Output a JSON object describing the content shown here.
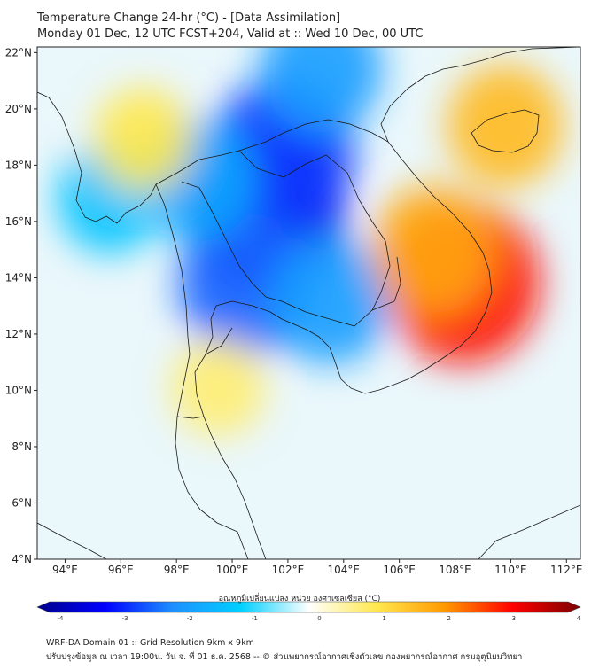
{
  "title": {
    "line1": "Temperature Change 24-hr (°C) - [Data Assimilation]",
    "line2": "Monday 01 Dec, 12 UTC FCST+204, Valid at :: Wed 10 Dec, 00 UTC"
  },
  "map": {
    "lat_range": [
      4,
      22.2
    ],
    "lon_range": [
      93,
      112.5
    ],
    "lat_ticks": [
      {
        "value": 4,
        "label": "4°N"
      },
      {
        "value": 6,
        "label": "6°N"
      },
      {
        "value": 8,
        "label": "8°N"
      },
      {
        "value": 10,
        "label": "10°N"
      },
      {
        "value": 12,
        "label": "12°N"
      },
      {
        "value": 14,
        "label": "14°N"
      },
      {
        "value": 16,
        "label": "16°N"
      },
      {
        "value": 18,
        "label": "18°N"
      },
      {
        "value": 20,
        "label": "20°N"
      },
      {
        "value": 22,
        "label": "22°N"
      }
    ],
    "lon_ticks": [
      {
        "value": 94,
        "label": "94°E"
      },
      {
        "value": 96,
        "label": "96°E"
      },
      {
        "value": 98,
        "label": "98°E"
      },
      {
        "value": 100,
        "label": "100°E"
      },
      {
        "value": 102,
        "label": "102°E"
      },
      {
        "value": 104,
        "label": "104°E"
      },
      {
        "value": 106,
        "label": "106°E"
      },
      {
        "value": 108,
        "label": "108°E"
      },
      {
        "value": 110,
        "label": "110°E"
      },
      {
        "value": 112,
        "label": "112°E"
      }
    ],
    "anomalies": [
      {
        "region": "central-thailand-cooling",
        "lon": 101.2,
        "lat": 16.3,
        "value": -3.2
      },
      {
        "region": "northern-laos-cooling",
        "lon": 101.8,
        "lat": 18.4,
        "value": -2.6
      },
      {
        "region": "lower-thailand-cooling",
        "lon": 100.5,
        "lat": 13.8,
        "value": -2.3
      },
      {
        "region": "cambodia-cooling",
        "lon": 103.5,
        "lat": 13.2,
        "value": -1.8
      },
      {
        "region": "myanmar-cooling",
        "lon": 98.8,
        "lat": 17.5,
        "value": -1.6
      },
      {
        "region": "north-myanmar-cooling",
        "lon": 103.2,
        "lat": 21.4,
        "value": -1.8
      },
      {
        "region": "west-myanmar-cooling",
        "lon": 95.6,
        "lat": 16.8,
        "value": -1.2
      },
      {
        "region": "south-vietnam-warming",
        "lon": 108.3,
        "lat": 13.8,
        "value": 2.9
      },
      {
        "region": "central-vietnam-warming",
        "lon": 107.2,
        "lat": 15.0,
        "value": 1.8
      },
      {
        "region": "hainan-warming",
        "lon": 109.8,
        "lat": 19.4,
        "value": 1.6
      },
      {
        "region": "myanmar-north-warming",
        "lon": 96.8,
        "lat": 18.9,
        "value": 1.0
      },
      {
        "region": "peninsula-warming",
        "lon": 99.5,
        "lat": 10.1,
        "value": 0.8
      }
    ]
  },
  "colorbar": {
    "label": "อุณหภูมิเปลี่ยนแปลง หน่วย องศาเซลเซียส (°C)",
    "vmin": -4,
    "vmax": 4,
    "ticks": [
      "-4",
      "-3",
      "-2",
      "-1",
      "0",
      "1",
      "2",
      "3",
      "4"
    ],
    "colors": [
      "#00008b",
      "#0000ff",
      "#1e90ff",
      "#00d0ff",
      "#ffffff",
      "#ffe84d",
      "#ff9900",
      "#ff0000",
      "#7a0000"
    ]
  },
  "footer": {
    "line1": "WRF-DA Domain 01 :: Grid Resolution 9km x 9km",
    "line2": "ปรับปรุงข้อมูล ณ เวลา 19:00น. วัน จ. ที่ 01 ธ.ค. 2568 -- © ส่วนพยากรณ์อากาศเชิงตัวเลข กองพยากรณ์อากาศ กรมอุตุนิยมวิทยา"
  }
}
